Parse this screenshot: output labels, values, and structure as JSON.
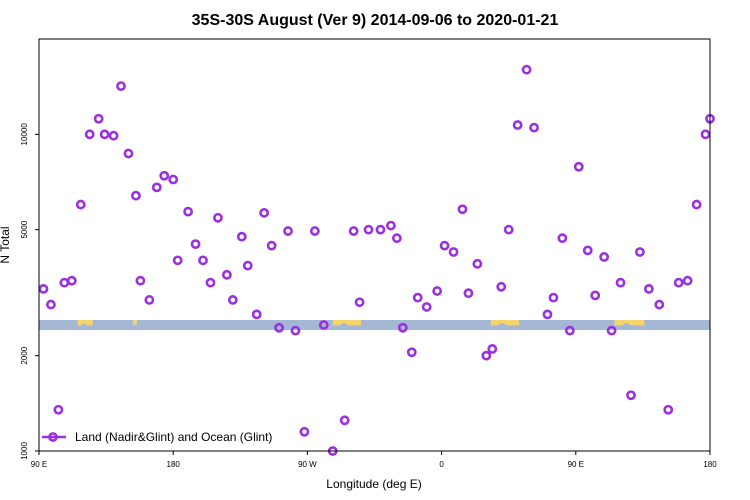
{
  "chart_data": {
    "type": "scatter",
    "title": "35S-30S August (Ver 9)   2014-09-06 to 2020-01-21",
    "xlabel": "Longitude (deg E)",
    "ylabel": "N Total",
    "y_scale": "log",
    "xlim": [
      90,
      540
    ],
    "ylim": [
      1000,
      20000
    ],
    "x_ticks": [
      {
        "value": 90,
        "label": "90 E"
      },
      {
        "value": 180,
        "label": "180"
      },
      {
        "value": 270,
        "label": "90 W"
      },
      {
        "value": 360,
        "label": "0"
      },
      {
        "value": 450,
        "label": "90 E"
      },
      {
        "value": 540,
        "label": "180"
      }
    ],
    "y_ticks": [
      {
        "value": 1000,
        "label": "1000"
      },
      {
        "value": 2000,
        "label": "2000"
      },
      {
        "value": 5000,
        "label": "5000"
      },
      {
        "value": 10000,
        "label": "10000"
      }
    ],
    "legend": {
      "label": "Land (Nadir&Glint) and Ocean (Glint)",
      "position": "bottom-left"
    },
    "marker_color": "#9b30e0",
    "ocean_color": "#a4b8d6",
    "land_color": "#f5d36e",
    "land_relief_color": "#a4b8d6",
    "strip_value": 2500,
    "land_segments": [
      [
        116,
        126
      ],
      [
        153,
        152
      ],
      [
        287,
        306
      ],
      [
        393,
        412
      ],
      [
        476,
        496
      ]
    ],
    "series": [
      {
        "name": "Land (Nadir&Glint) and Ocean (Glint)",
        "x": [
          93,
          98,
          103,
          107,
          112,
          118,
          124,
          130,
          134,
          140,
          145,
          150,
          155,
          158,
          164,
          169,
          174,
          180,
          183,
          190,
          195,
          200,
          205,
          210,
          216,
          220,
          226,
          230,
          236,
          241,
          246,
          251,
          257,
          262,
          268,
          275,
          281,
          287,
          295,
          301,
          305,
          311,
          319,
          326,
          330,
          334,
          340,
          344,
          350,
          357,
          362,
          368,
          374,
          378,
          384,
          390,
          394,
          400,
          405,
          411,
          417,
          422,
          431,
          435,
          441,
          446,
          452,
          458,
          463,
          469,
          474,
          480,
          487,
          493,
          499,
          506,
          512,
          519,
          525,
          531,
          537,
          540
        ],
        "y": [
          3250,
          2900,
          1350,
          3400,
          3450,
          6000,
          10000,
          11200,
          10000,
          9900,
          14200,
          8700,
          6400,
          3450,
          3000,
          6800,
          7400,
          7200,
          4000,
          5700,
          4500,
          4000,
          3400,
          5450,
          3600,
          3000,
          4750,
          3850,
          2700,
          5650,
          4450,
          2450,
          4950,
          2400,
          1150,
          4950,
          2500,
          1000,
          1250,
          4950,
          2950,
          5000,
          5000,
          5150,
          4700,
          2450,
          2050,
          3050,
          2850,
          3200,
          4450,
          4250,
          5800,
          3150,
          3900,
          2000,
          2100,
          3300,
          5000,
          10700,
          16000,
          10500,
          2700,
          3050,
          4700,
          2400,
          7900,
          4300,
          3100,
          4100,
          2400,
          3400,
          1500,
          4250,
          3250,
          2900,
          1350,
          3400,
          3450,
          6000,
          10000,
          11200
        ]
      }
    ]
  }
}
